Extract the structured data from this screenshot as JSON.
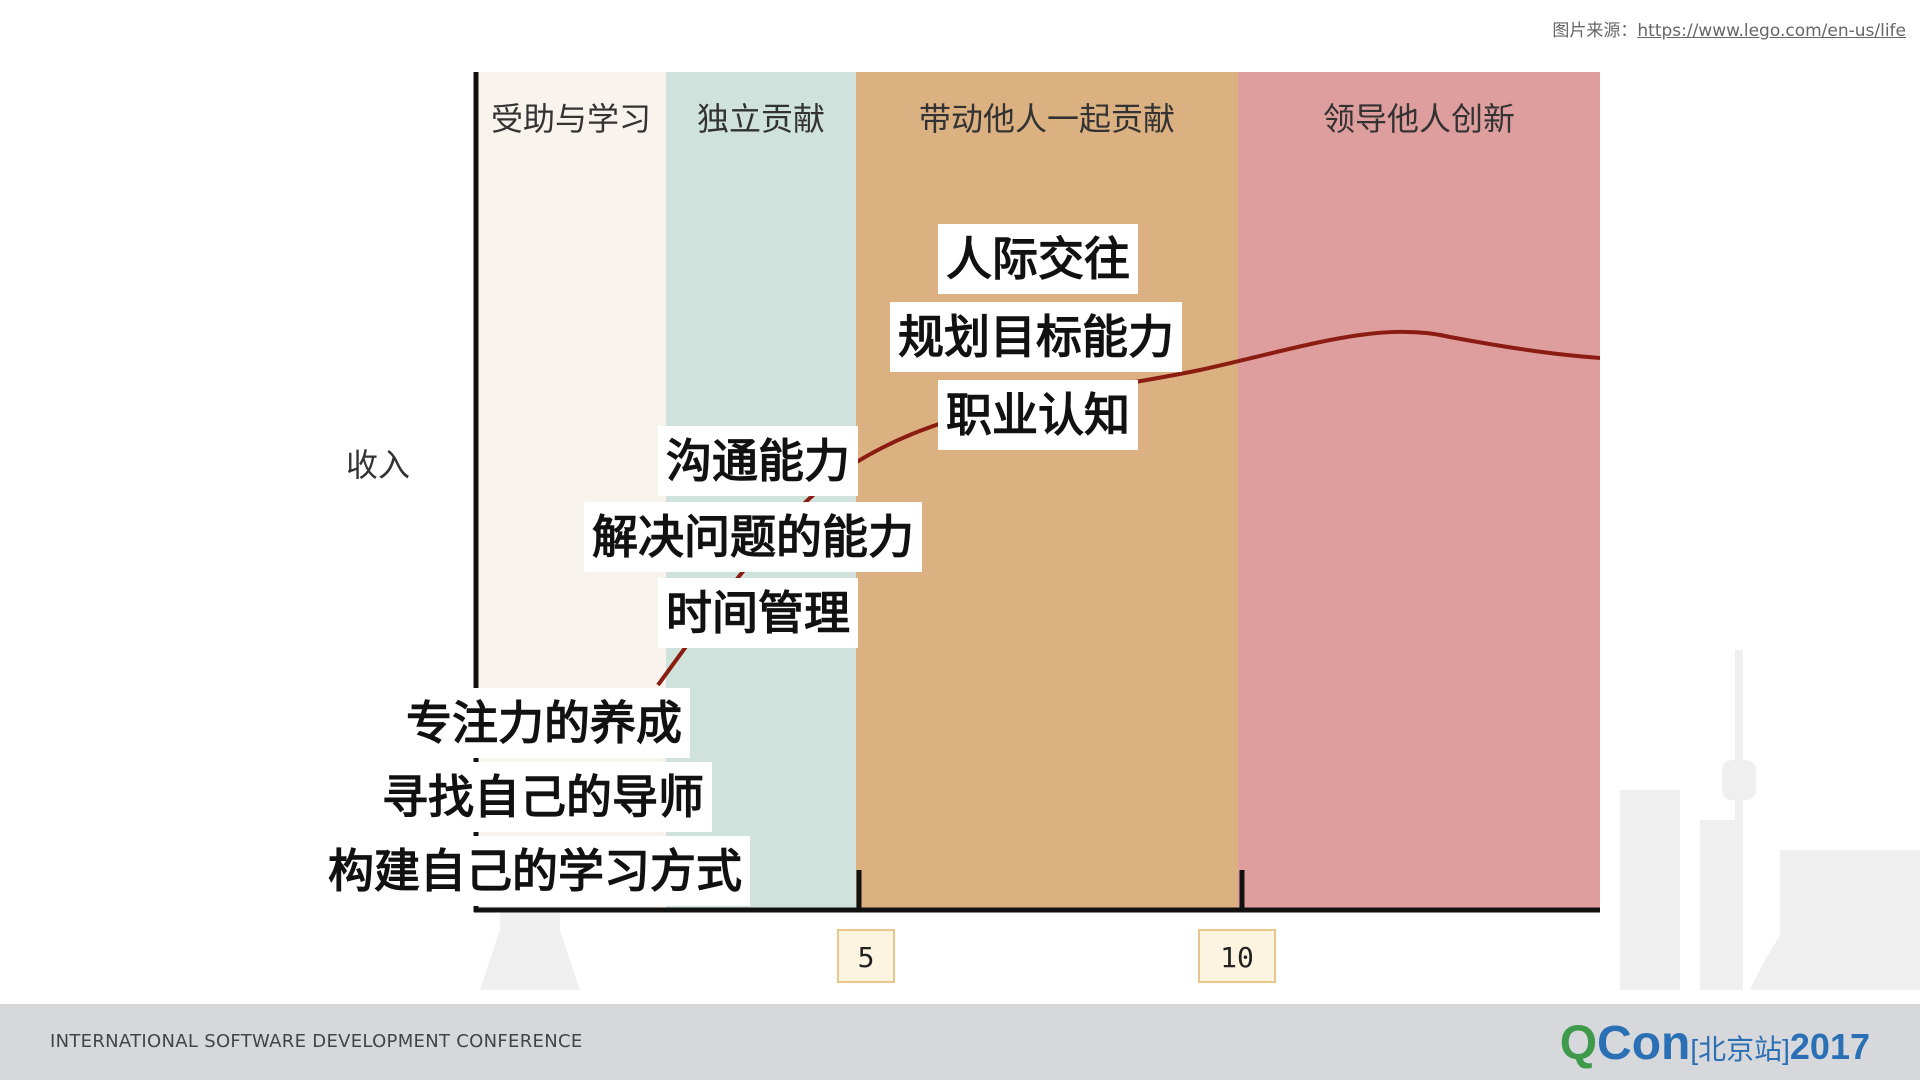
{
  "source": {
    "prefix": "图片来源：",
    "url_text": "https://www.lego.com/en-us/life"
  },
  "chart_data": {
    "type": "line",
    "ylabel": "收入",
    "stages": [
      "受助与学习",
      "独立贡献",
      "带动他人一起贡献",
      "领导他人创新"
    ],
    "stage_colors": [
      "#f9f3ee",
      "#cfe2db",
      "#dbb182",
      "#df9e9e"
    ],
    "x_ticks": [
      "5",
      "10"
    ],
    "curve_color": "#8b1c12"
  },
  "skills": {
    "group1": [
      "专注力的养成",
      "寻找自己的导师",
      "构建自己的学习方式"
    ],
    "group2": [
      "沟通能力",
      "解决问题的能力",
      "时间管理"
    ],
    "group3": [
      "人际交往",
      "规划目标能力",
      "职业认知"
    ]
  },
  "footer": {
    "conference": "INTERNATIONAL SOFTWARE DEVELOPMENT CONFERENCE",
    "logo_q": "Q",
    "logo_con": "Con",
    "logo_city": "[北京站]",
    "logo_year": "2017"
  }
}
